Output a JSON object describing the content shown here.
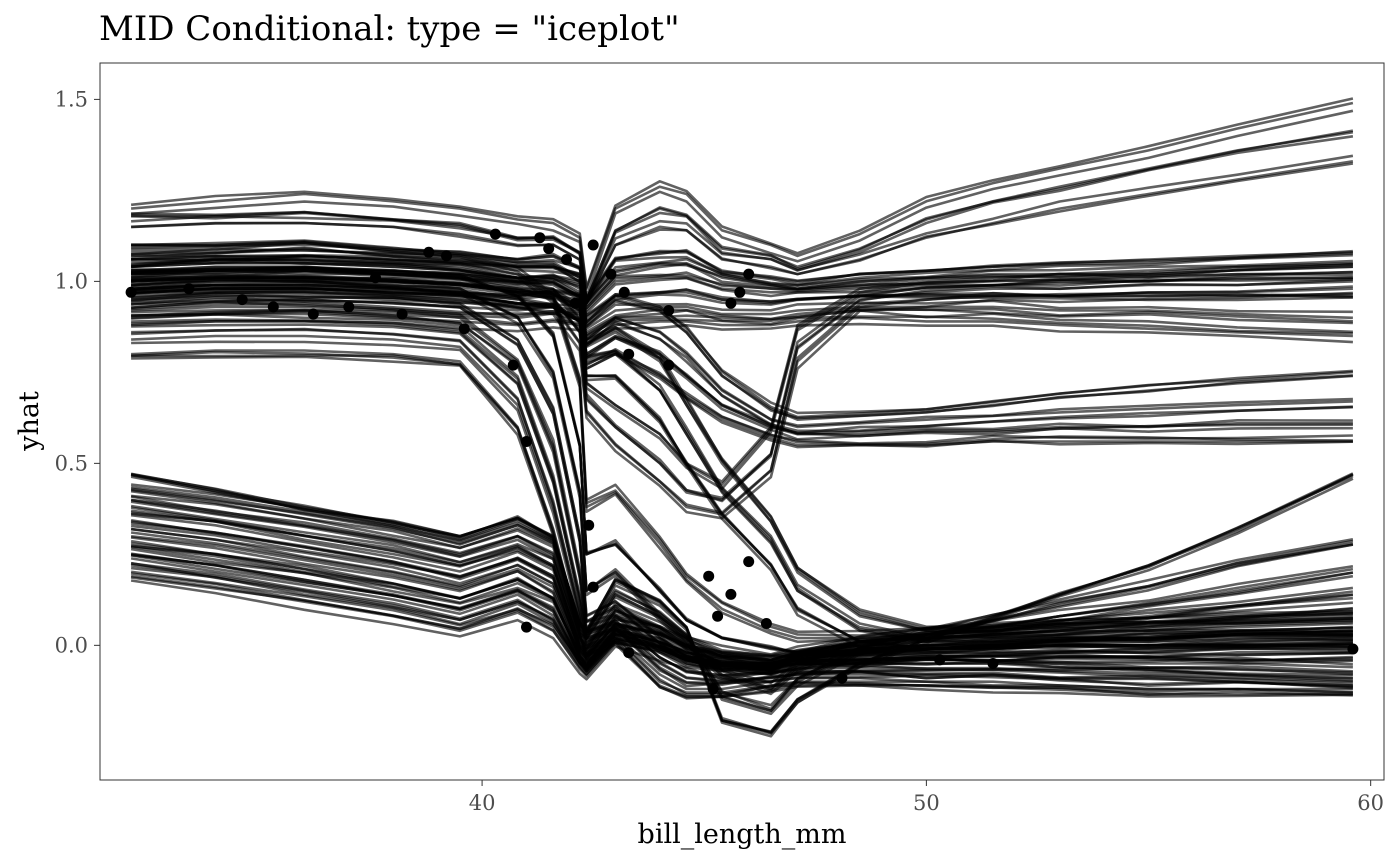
{
  "chart_data": {
    "type": "line",
    "title": "MID Conditional: type = \"iceplot\"",
    "xlabel": "bill_length_mm",
    "ylabel": "yhat",
    "xlim": [
      31.4,
      60.3
    ],
    "ylim": [
      -0.37,
      1.6
    ],
    "x_ticks": [
      40,
      50,
      60
    ],
    "x_tick_labels": [
      "40",
      "50",
      "60"
    ],
    "y_ticks": [
      0.0,
      0.5,
      1.0,
      1.5
    ],
    "y_tick_labels": [
      "0.0",
      "0.5",
      "1.0",
      "1.5"
    ],
    "grid": false,
    "line_color": "#000000",
    "line_opacity": 0.62,
    "x_grid": [
      32.1,
      34,
      36,
      38,
      39.5,
      40.8,
      41.6,
      42.2,
      42.35,
      43,
      44,
      44.6,
      45.4,
      46.5,
      47.1,
      48.5,
      50,
      51.5,
      53,
      55,
      57,
      59.6
    ],
    "profiles": {
      "upper_high_stable": [
        [
          1.2,
          1.22,
          1.24,
          1.22,
          1.2,
          1.17,
          1.16,
          1.12,
          0.98,
          1.2,
          1.26,
          1.24,
          1.14,
          1.1,
          1.07,
          1.13,
          1.22,
          1.27,
          1.31,
          1.36,
          1.42,
          1.49
        ],
        [
          1.18,
          1.18,
          1.19,
          1.17,
          1.16,
          1.12,
          1.12,
          1.08,
          0.95,
          1.14,
          1.2,
          1.18,
          1.09,
          1.07,
          1.04,
          1.09,
          1.17,
          1.22,
          1.26,
          1.31,
          1.36,
          1.41
        ],
        [
          1.15,
          1.16,
          1.16,
          1.15,
          1.13,
          1.1,
          1.1,
          1.06,
          0.94,
          1.1,
          1.15,
          1.14,
          1.06,
          1.04,
          1.02,
          1.06,
          1.12,
          1.16,
          1.2,
          1.24,
          1.28,
          1.33
        ]
      ],
      "upper_stable": [
        [
          1.1,
          1.1,
          1.11,
          1.09,
          1.08,
          1.06,
          1.07,
          1.04,
          0.95,
          1.06,
          1.08,
          1.08,
          1.03,
          1.01,
          1.0,
          1.02,
          1.03,
          1.04,
          1.05,
          1.06,
          1.07,
          1.08
        ],
        [
          1.06,
          1.06,
          1.07,
          1.06,
          1.05,
          1.04,
          1.04,
          1.02,
          0.94,
          1.03,
          1.05,
          1.05,
          1.01,
          0.99,
          0.98,
          1.0,
          1.01,
          1.02,
          1.02,
          1.03,
          1.04,
          1.05
        ],
        [
          1.02,
          1.02,
          1.03,
          1.02,
          1.01,
          1.0,
          1.01,
          0.99,
          0.92,
          1.0,
          1.01,
          1.01,
          0.98,
          0.97,
          0.97,
          0.98,
          0.99,
          0.99,
          1.0,
          1.0,
          1.01,
          1.01
        ],
        [
          0.98,
          0.99,
          0.99,
          0.98,
          0.97,
          0.96,
          0.97,
          0.96,
          0.9,
          0.96,
          0.97,
          0.97,
          0.95,
          0.94,
          0.95,
          0.96,
          0.96,
          0.96,
          0.96,
          0.96,
          0.96,
          0.96
        ],
        [
          0.94,
          0.95,
          0.95,
          0.94,
          0.93,
          0.92,
          0.93,
          0.92,
          0.87,
          0.92,
          0.93,
          0.93,
          0.91,
          0.91,
          0.92,
          0.93,
          0.93,
          0.93,
          0.92,
          0.92,
          0.91,
          0.9
        ],
        [
          0.9,
          0.91,
          0.91,
          0.9,
          0.89,
          0.88,
          0.89,
          0.88,
          0.84,
          0.88,
          0.89,
          0.89,
          0.88,
          0.88,
          0.89,
          0.9,
          0.89,
          0.89,
          0.88,
          0.87,
          0.86,
          0.85
        ]
      ],
      "upper_to_mid": [
        [
          1.08,
          1.08,
          1.09,
          1.07,
          1.06,
          1.04,
          1.04,
          1.0,
          0.88,
          0.95,
          0.92,
          0.86,
          0.74,
          0.65,
          0.62,
          0.63,
          0.64,
          0.66,
          0.68,
          0.7,
          0.72,
          0.74
        ],
        [
          1.04,
          1.05,
          1.05,
          1.04,
          1.03,
          1.01,
          1.01,
          0.97,
          0.84,
          0.9,
          0.86,
          0.8,
          0.7,
          0.62,
          0.6,
          0.61,
          0.62,
          0.63,
          0.64,
          0.65,
          0.66,
          0.67
        ],
        [
          1.0,
          1.01,
          1.01,
          1.0,
          0.99,
          0.97,
          0.97,
          0.93,
          0.8,
          0.85,
          0.8,
          0.74,
          0.66,
          0.6,
          0.58,
          0.58,
          0.59,
          0.59,
          0.6,
          0.6,
          0.61,
          0.61
        ],
        [
          0.96,
          0.97,
          0.97,
          0.96,
          0.95,
          0.93,
          0.93,
          0.89,
          0.76,
          0.8,
          0.74,
          0.68,
          0.62,
          0.57,
          0.55,
          0.55,
          0.55,
          0.56,
          0.56,
          0.56,
          0.56,
          0.56
        ]
      ],
      "upper_dip_recover": [
        [
          1.03,
          1.04,
          1.04,
          1.03,
          1.02,
          1.0,
          0.98,
          0.9,
          0.72,
          0.66,
          0.58,
          0.5,
          0.45,
          0.6,
          0.88,
          0.98,
          1.0,
          1.01,
          1.02,
          1.02,
          1.03,
          1.04
        ],
        [
          1.0,
          1.01,
          1.01,
          1.0,
          0.99,
          0.97,
          0.95,
          0.86,
          0.68,
          0.6,
          0.5,
          0.42,
          0.4,
          0.52,
          0.82,
          0.95,
          0.97,
          0.98,
          0.98,
          0.99,
          0.99,
          1.0
        ],
        [
          0.98,
          0.99,
          0.99,
          0.98,
          0.97,
          0.95,
          0.93,
          0.83,
          0.64,
          0.55,
          0.45,
          0.38,
          0.36,
          0.48,
          0.78,
          0.93,
          0.95,
          0.96,
          0.96,
          0.97,
          0.97,
          0.98
        ]
      ],
      "upper_drop_to_low": [
        [
          1.06,
          1.07,
          1.07,
          1.06,
          1.05,
          1.02,
          0.95,
          0.72,
          0.38,
          0.42,
          0.28,
          0.18,
          0.1,
          0.04,
          0.02,
          0.02,
          0.03,
          0.04,
          0.05,
          0.06,
          0.07,
          0.08
        ],
        [
          1.02,
          1.03,
          1.03,
          1.02,
          1.01,
          0.96,
          0.85,
          0.55,
          0.25,
          0.28,
          0.15,
          0.07,
          0.02,
          -0.01,
          -0.02,
          -0.02,
          -0.01,
          0.0,
          0.01,
          0.02,
          0.03,
          0.04
        ],
        [
          0.99,
          1.0,
          1.0,
          0.99,
          0.98,
          0.9,
          0.75,
          0.42,
          0.15,
          0.2,
          0.08,
          0.02,
          -0.02,
          -0.03,
          -0.03,
          -0.03,
          -0.02,
          -0.01,
          0.0,
          0.0,
          0.01,
          0.02
        ],
        [
          0.95,
          0.96,
          0.96,
          0.95,
          0.94,
          0.84,
          0.65,
          0.3,
          0.08,
          0.12,
          0.02,
          -0.03,
          -0.05,
          -0.05,
          -0.04,
          -0.04,
          -0.03,
          -0.03,
          -0.02,
          -0.02,
          -0.01,
          -0.01
        ],
        [
          0.92,
          0.93,
          0.93,
          0.92,
          0.9,
          0.78,
          0.55,
          0.2,
          0.05,
          0.08,
          -0.02,
          -0.06,
          -0.07,
          -0.06,
          -0.05,
          -0.05,
          -0.05,
          -0.05,
          -0.05,
          -0.05,
          -0.05,
          -0.06
        ],
        [
          0.88,
          0.89,
          0.89,
          0.88,
          0.86,
          0.72,
          0.45,
          0.12,
          0.02,
          0.05,
          -0.05,
          -0.09,
          -0.1,
          -0.09,
          -0.08,
          -0.08,
          -0.08,
          -0.08,
          -0.09,
          -0.09,
          -0.1,
          -0.11
        ],
        [
          0.84,
          0.85,
          0.85,
          0.84,
          0.82,
          0.66,
          0.38,
          0.08,
          0.0,
          0.03,
          -0.08,
          -0.12,
          -0.12,
          -0.1,
          -0.09,
          -0.09,
          -0.1,
          -0.1,
          -0.11,
          -0.12,
          -0.12,
          -0.13
        ],
        [
          0.8,
          0.81,
          0.81,
          0.8,
          0.78,
          0.6,
          0.32,
          0.04,
          -0.02,
          0.02,
          -0.1,
          -0.13,
          -0.13,
          -0.11,
          -0.1,
          -0.1,
          -0.1,
          -0.11,
          -0.11,
          -0.12,
          -0.12,
          -0.12
        ]
      ],
      "upper_mid_to_low": [
        [
          1.04,
          1.05,
          1.05,
          1.04,
          1.03,
          1.0,
          0.99,
          0.95,
          0.82,
          0.86,
          0.78,
          0.66,
          0.5,
          0.34,
          0.2,
          0.08,
          0.04,
          0.04,
          0.05,
          0.06,
          0.06,
          0.07
        ],
        [
          1.0,
          1.01,
          1.01,
          1.0,
          0.99,
          0.97,
          0.96,
          0.92,
          0.78,
          0.8,
          0.7,
          0.58,
          0.42,
          0.28,
          0.15,
          0.04,
          0.01,
          0.01,
          0.02,
          0.02,
          0.03,
          0.03
        ],
        [
          0.97,
          0.98,
          0.98,
          0.97,
          0.96,
          0.94,
          0.93,
          0.89,
          0.74,
          0.74,
          0.62,
          0.5,
          0.36,
          0.22,
          0.1,
          0.01,
          -0.01,
          -0.01,
          0.0,
          0.0,
          0.0,
          0.01
        ]
      ],
      "lower_group": [
        [
          0.47,
          0.43,
          0.38,
          0.34,
          0.3,
          0.35,
          0.3,
          0.06,
          0.04,
          0.18,
          0.12,
          0.05,
          -0.2,
          -0.24,
          -0.15,
          -0.05,
          0.02,
          0.08,
          0.14,
          0.22,
          0.32,
          0.47
        ],
        [
          0.43,
          0.4,
          0.36,
          0.32,
          0.28,
          0.33,
          0.28,
          0.04,
          0.02,
          0.14,
          0.08,
          0.02,
          -0.14,
          -0.18,
          -0.1,
          -0.02,
          0.03,
          0.07,
          0.11,
          0.16,
          0.22,
          0.28
        ],
        [
          0.4,
          0.37,
          0.33,
          0.29,
          0.25,
          0.3,
          0.25,
          0.02,
          0.0,
          0.1,
          0.05,
          0.0,
          -0.08,
          -0.12,
          -0.06,
          0.0,
          0.03,
          0.05,
          0.08,
          0.11,
          0.15,
          0.2
        ],
        [
          0.37,
          0.34,
          0.3,
          0.26,
          0.22,
          0.27,
          0.22,
          0.0,
          -0.02,
          0.08,
          0.04,
          0.0,
          -0.04,
          -0.07,
          -0.03,
          0.01,
          0.03,
          0.04,
          0.06,
          0.08,
          0.11,
          0.14
        ],
        [
          0.34,
          0.31,
          0.27,
          0.23,
          0.19,
          0.24,
          0.19,
          -0.01,
          -0.03,
          0.06,
          0.03,
          0.0,
          -0.02,
          -0.04,
          -0.02,
          0.01,
          0.02,
          0.03,
          0.04,
          0.06,
          0.08,
          0.1
        ],
        [
          0.31,
          0.28,
          0.24,
          0.2,
          0.16,
          0.21,
          0.16,
          -0.02,
          -0.04,
          0.05,
          0.02,
          -0.01,
          -0.03,
          -0.04,
          -0.02,
          0.0,
          0.01,
          0.02,
          0.03,
          0.04,
          0.05,
          0.06
        ],
        [
          0.28,
          0.25,
          0.21,
          0.17,
          0.13,
          0.18,
          0.13,
          -0.03,
          -0.05,
          0.04,
          0.01,
          -0.02,
          -0.04,
          -0.05,
          -0.03,
          -0.01,
          0.0,
          0.01,
          0.02,
          0.02,
          0.03,
          0.03
        ],
        [
          0.25,
          0.22,
          0.18,
          0.14,
          0.1,
          0.15,
          0.1,
          -0.04,
          -0.06,
          0.03,
          0.0,
          -0.03,
          -0.05,
          -0.06,
          -0.04,
          -0.02,
          -0.01,
          0.0,
          0.0,
          0.0,
          0.0,
          0.0
        ],
        [
          0.22,
          0.19,
          0.15,
          0.11,
          0.07,
          0.12,
          0.07,
          -0.05,
          -0.07,
          0.02,
          -0.01,
          -0.04,
          -0.06,
          -0.07,
          -0.05,
          -0.04,
          -0.03,
          -0.03,
          -0.03,
          -0.03,
          -0.04,
          -0.04
        ],
        [
          0.19,
          0.16,
          0.12,
          0.08,
          0.04,
          0.09,
          0.04,
          -0.06,
          -0.08,
          0.01,
          -0.02,
          -0.05,
          -0.07,
          -0.08,
          -0.06,
          -0.05,
          -0.05,
          -0.05,
          -0.06,
          -0.07,
          -0.08,
          -0.09
        ]
      ]
    },
    "observed_points": [
      {
        "x": 32.1,
        "y": 0.97
      },
      {
        "x": 33.4,
        "y": 0.98
      },
      {
        "x": 34.6,
        "y": 0.95
      },
      {
        "x": 35.3,
        "y": 0.93
      },
      {
        "x": 36.2,
        "y": 0.91
      },
      {
        "x": 37.0,
        "y": 0.93
      },
      {
        "x": 37.6,
        "y": 1.01
      },
      {
        "x": 38.2,
        "y": 0.91
      },
      {
        "x": 38.8,
        "y": 1.08
      },
      {
        "x": 39.2,
        "y": 1.07
      },
      {
        "x": 39.6,
        "y": 0.87
      },
      {
        "x": 40.3,
        "y": 1.13
      },
      {
        "x": 40.7,
        "y": 0.77
      },
      {
        "x": 41.0,
        "y": 0.56
      },
      {
        "x": 41.3,
        "y": 1.12
      },
      {
        "x": 41.5,
        "y": 1.09
      },
      {
        "x": 41.9,
        "y": 1.06
      },
      {
        "x": 42.1,
        "y": 0.94
      },
      {
        "x": 42.5,
        "y": 1.1
      },
      {
        "x": 42.9,
        "y": 1.02
      },
      {
        "x": 43.2,
        "y": 0.97
      },
      {
        "x": 43.3,
        "y": 0.8
      },
      {
        "x": 44.2,
        "y": 0.92
      },
      {
        "x": 44.2,
        "y": 0.77
      },
      {
        "x": 45.6,
        "y": 0.94
      },
      {
        "x": 45.8,
        "y": 0.97
      },
      {
        "x": 46.0,
        "y": 1.02
      },
      {
        "x": 41.0,
        "y": 0.05
      },
      {
        "x": 42.4,
        "y": 0.33
      },
      {
        "x": 42.5,
        "y": 0.16
      },
      {
        "x": 43.3,
        "y": -0.02
      },
      {
        "x": 45.1,
        "y": 0.19
      },
      {
        "x": 45.3,
        "y": 0.08
      },
      {
        "x": 45.6,
        "y": 0.14
      },
      {
        "x": 46.0,
        "y": 0.23
      },
      {
        "x": 46.4,
        "y": 0.06
      },
      {
        "x": 45.2,
        "y": -0.12
      },
      {
        "x": 48.1,
        "y": -0.09
      },
      {
        "x": 50.3,
        "y": -0.04
      },
      {
        "x": 51.5,
        "y": -0.05
      },
      {
        "x": 59.6,
        "y": -0.01
      }
    ]
  }
}
